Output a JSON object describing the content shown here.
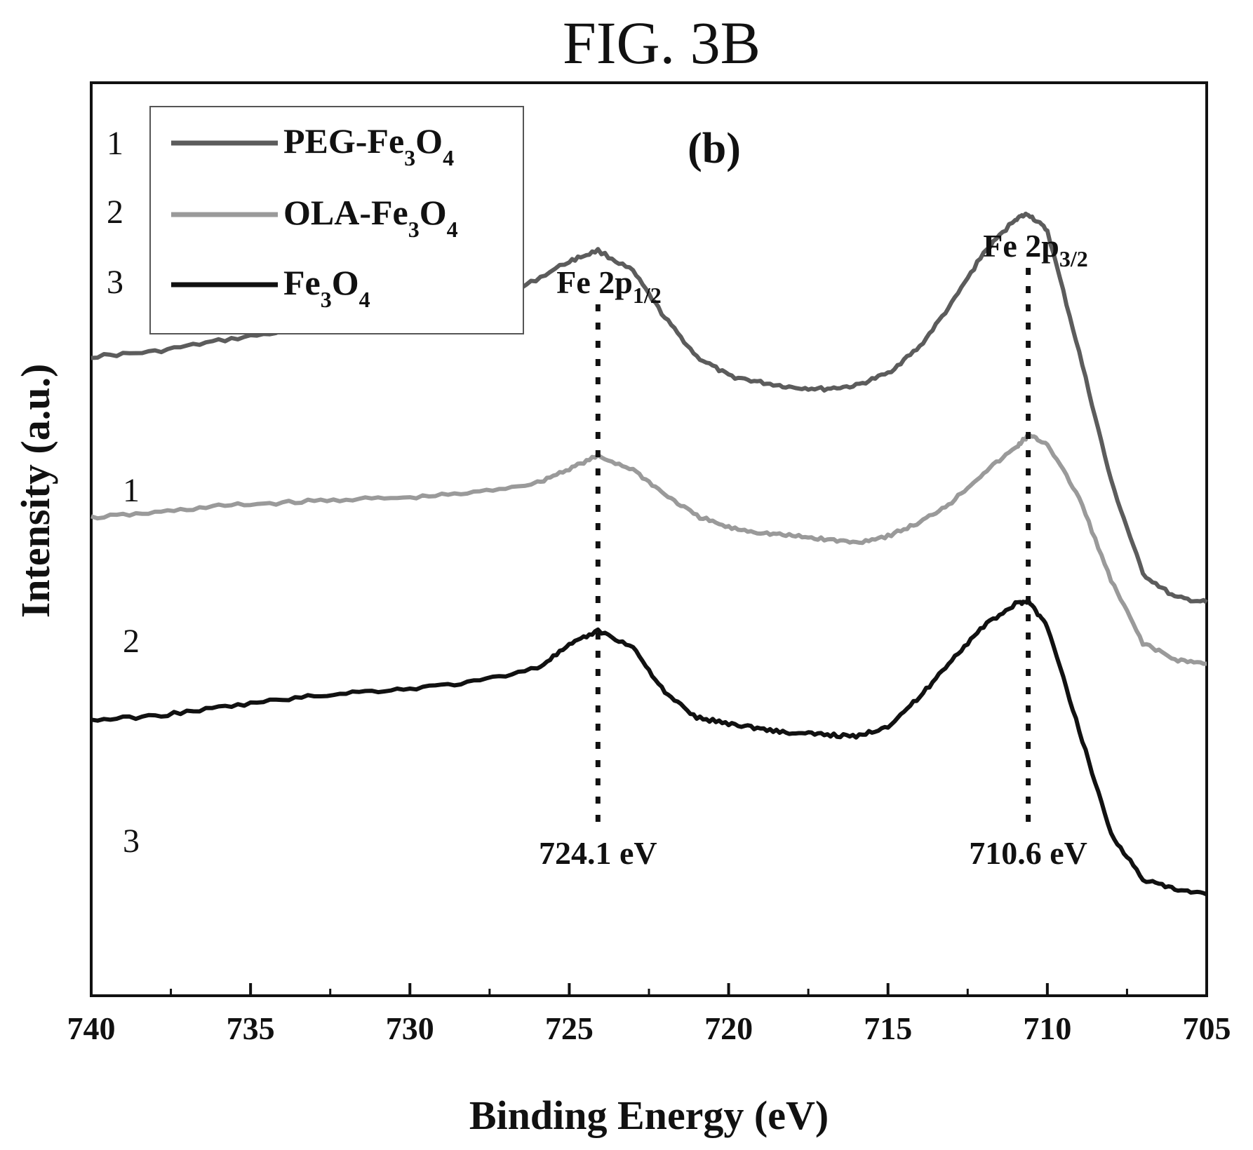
{
  "figure_label": "FIG. 3B",
  "chart_data": {
    "type": "line",
    "panel_label": "(b)",
    "xlabel": "Binding Energy (eV)",
    "ylabel": "Intensity (a.u.)",
    "xlim": [
      740,
      705
    ],
    "x_reversed": true,
    "x_ticks": [
      "740",
      "735",
      "730",
      "725",
      "720",
      "715",
      "710",
      "705"
    ],
    "y_ticks": [],
    "grid": false,
    "legend_position": "top-left",
    "series": [
      {
        "name_base": "PEG-Fe",
        "sub1": "3",
        "name_mid": "O",
        "sub2": "4",
        "number": "1",
        "color": "#5c5c5c",
        "x": [
          740,
          738,
          736,
          734,
          732,
          730,
          728,
          726.5,
          725,
          724.1,
          723,
          722,
          721,
          720,
          719,
          718,
          717,
          716,
          715,
          714,
          713,
          712,
          711,
          710.6,
          710,
          709,
          708,
          707,
          706,
          705
        ],
        "y": [
          0.57,
          0.564,
          0.551,
          0.54,
          0.531,
          0.523,
          0.509,
          0.487,
          0.455,
          0.442,
          0.467,
          0.523,
          0.57,
          0.593,
          0.601,
          0.607,
          0.609,
          0.605,
          0.59,
          0.558,
          0.506,
          0.445,
          0.404,
          0.398,
          0.418,
          0.565,
          0.72,
          0.832,
          0.86,
          0.866
        ]
      },
      {
        "name_base": "OLA-Fe",
        "sub1": "3",
        "name_mid": "O",
        "sub2": "4",
        "number": "2",
        "color": "#9a9a9a",
        "x": [
          740,
          738,
          736,
          734,
          732,
          730,
          728,
          726,
          725,
          724.1,
          723,
          722,
          721,
          720,
          719,
          718,
          717,
          716,
          715,
          714,
          713,
          712,
          711,
          710.6,
          710,
          709,
          708,
          707,
          706,
          705
        ],
        "y": [
          0.764,
          0.758,
          0.75,
          0.746,
          0.742,
          0.74,
          0.734,
          0.722,
          0.705,
          0.69,
          0.706,
          0.736,
          0.762,
          0.776,
          0.782,
          0.786,
          0.79,
          0.794,
          0.786,
          0.77,
          0.745,
          0.71,
          0.68,
          0.665,
          0.675,
          0.74,
          0.84,
          0.915,
          0.935,
          0.94
        ]
      },
      {
        "name_base": "Fe",
        "sub1": "3",
        "name_mid": "O",
        "sub2": "4",
        "number": "3",
        "color": "#111111",
        "x": [
          740,
          738,
          736,
          734,
          732,
          730,
          728,
          726,
          725,
          724.1,
          723,
          722,
          721,
          720,
          719,
          718,
          717,
          716,
          715,
          714,
          713,
          712,
          711,
          710.6,
          710,
          709,
          708,
          707,
          706,
          705
        ],
        "y": [
          1.008,
          1.003,
          0.993,
          0.983,
          0.975,
          0.97,
          0.962,
          0.945,
          0.918,
          0.9,
          0.92,
          0.975,
          1.005,
          1.012,
          1.018,
          1.024,
          1.025,
          1.028,
          1.015,
          0.98,
          0.935,
          0.895,
          0.868,
          0.864,
          0.895,
          1.02,
          1.145,
          1.2,
          1.212,
          1.218
        ]
      }
    ],
    "annotations": [
      {
        "label_base": "Fe 2p",
        "label_sub": "1/2",
        "x": 724.1,
        "value_label": "724.1 eV"
      },
      {
        "label_base": "Fe 2p",
        "label_sub": "3/2",
        "x": 710.6,
        "value_label": "710.6 eV"
      }
    ]
  }
}
